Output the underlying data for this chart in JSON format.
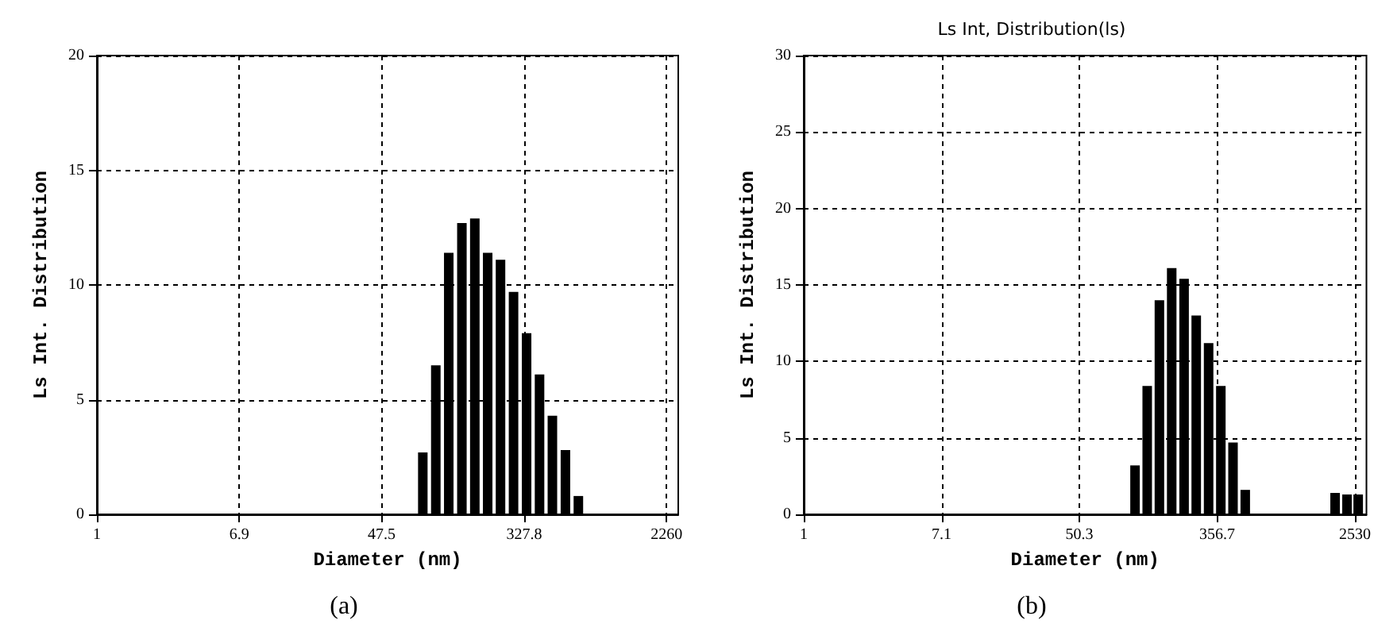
{
  "chart_data": [
    {
      "type": "bar",
      "xlabel": "Diameter (nm)",
      "ylabel": "Ls Int. Distribution",
      "annotations": [
        "(a)"
      ],
      "x": [
        83,
        99,
        118,
        141,
        168,
        200,
        238,
        284,
        339,
        404,
        481,
        574,
        684
      ],
      "values": [
        2.7,
        6.5,
        11.4,
        12.7,
        12.9,
        11.4,
        11.1,
        9.7,
        7.9,
        6.1,
        4.3,
        2.8,
        0.8
      ],
      "color": "#000000",
      "log": "x",
      "xlim": [
        1,
        2650
      ],
      "xticks": [
        1,
        6.9,
        47.5,
        327.8,
        2260
      ],
      "ylim": [
        0,
        20
      ],
      "yticks": [
        0,
        5,
        10,
        15,
        20
      ],
      "grid": true
    },
    {
      "type": "bar",
      "title": "Ls Int, Distribution(ls)",
      "xlabel": "Diameter (nm)",
      "ylabel": "Ls Int. Distribution",
      "annotations": [
        "(b)"
      ],
      "x": [
        111,
        132,
        157,
        187,
        223,
        265,
        316,
        376,
        447,
        532,
        1908,
        2260,
        2650
      ],
      "values": [
        3.2,
        8.4,
        14.0,
        16.1,
        15.4,
        13.0,
        11.2,
        8.4,
        4.7,
        1.6,
        1.4,
        1.3,
        1.3
      ],
      "color": "#000000",
      "log": "x",
      "xlim": [
        1,
        2980
      ],
      "xticks": [
        1,
        7.1,
        50.3,
        356.7,
        2530
      ],
      "ylim": [
        0,
        30
      ],
      "yticks": [
        0,
        5,
        10,
        15,
        20,
        25,
        30
      ],
      "grid": true
    }
  ]
}
